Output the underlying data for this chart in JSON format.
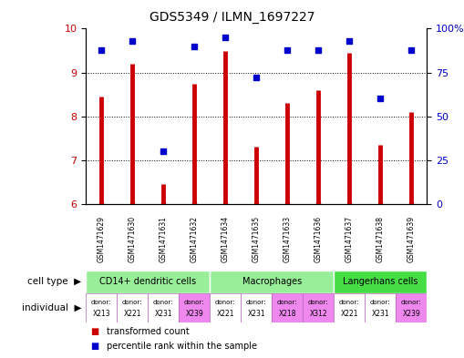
{
  "title": "GDS5349 / ILMN_1697227",
  "samples": [
    "GSM1471629",
    "GSM1471630",
    "GSM1471631",
    "GSM1471632",
    "GSM1471634",
    "GSM1471635",
    "GSM1471633",
    "GSM1471636",
    "GSM1471637",
    "GSM1471638",
    "GSM1471639"
  ],
  "transformed_count": [
    8.45,
    9.2,
    6.45,
    8.75,
    9.5,
    7.3,
    8.3,
    8.6,
    9.45,
    7.35,
    8.1
  ],
  "percentile_rank": [
    88,
    93,
    30,
    90,
    95,
    72,
    88,
    88,
    93,
    60,
    88
  ],
  "ylim_left": [
    6,
    10
  ],
  "ylim_right": [
    0,
    100
  ],
  "yticks_left": [
    6,
    7,
    8,
    9,
    10
  ],
  "yticks_right": [
    0,
    25,
    50,
    75,
    100
  ],
  "bar_color": "#cc0000",
  "dot_color": "#0000cc",
  "groups": [
    {
      "label": "CD14+ dendritic cells",
      "start": 0,
      "end": 4,
      "color": "#99ee99"
    },
    {
      "label": "Macrophages",
      "start": 4,
      "end": 8,
      "color": "#99ee99"
    },
    {
      "label": "Langerhans cells",
      "start": 8,
      "end": 11,
      "color": "#44dd44"
    }
  ],
  "donors": [
    "X213",
    "X221",
    "X231",
    "X239",
    "X221",
    "X231",
    "X218",
    "X312",
    "X221",
    "X231",
    "X239"
  ],
  "donor_colors": [
    "#ffffff",
    "#ffffff",
    "#ffffff",
    "#ee88ee",
    "#ffffff",
    "#ffffff",
    "#ee88ee",
    "#ee88ee",
    "#ffffff",
    "#ffffff",
    "#ee88ee"
  ],
  "bg_color": "#ffffff",
  "sample_row_color": "#cccccc",
  "tick_fontsize": 8,
  "title_fontsize": 10,
  "sample_fontsize": 5.5,
  "celltype_fontsize": 7,
  "donor_fontsize": 5.5,
  "legend_fontsize": 7
}
